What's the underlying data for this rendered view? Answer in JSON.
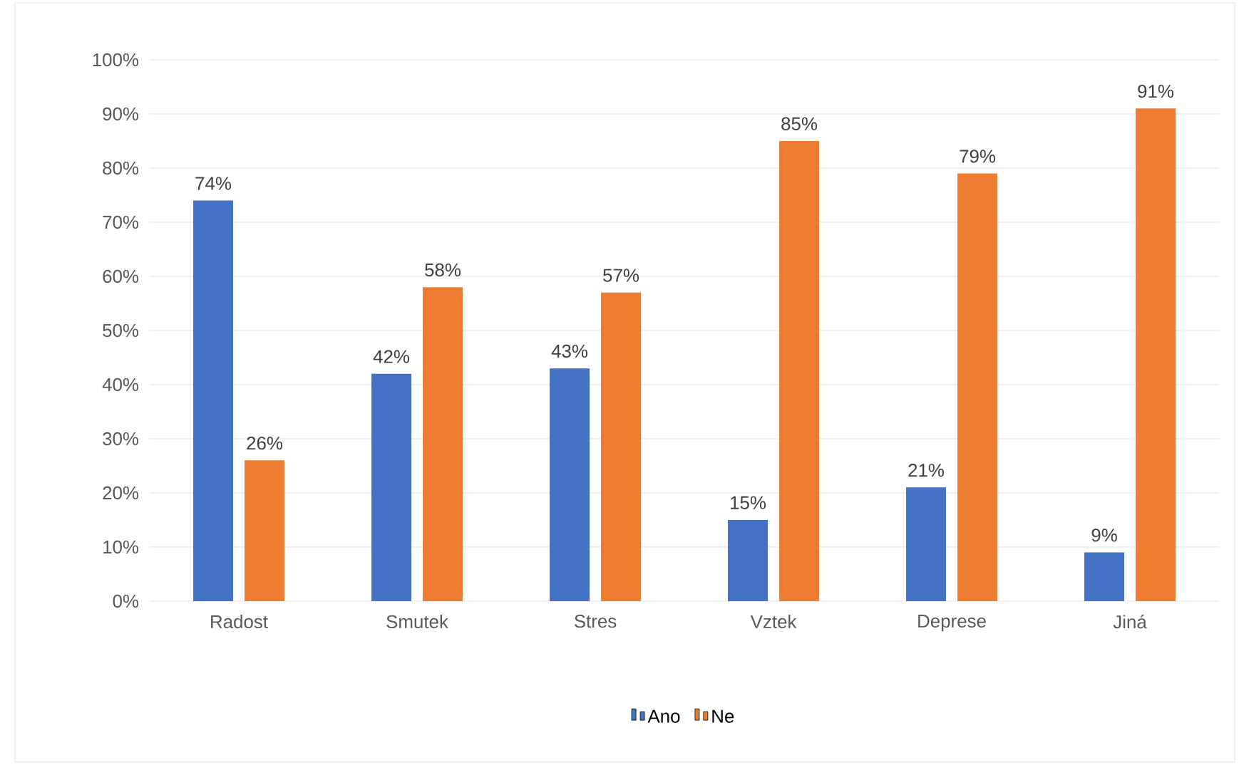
{
  "chart_data": {
    "type": "bar",
    "categories": [
      "Radost",
      "Smutek",
      "Stres",
      "Vztek",
      "Deprese",
      "Jiná"
    ],
    "series": [
      {
        "name": "Ano",
        "color": "#4472c4",
        "values": [
          74,
          42,
          43,
          15,
          21,
          9
        ],
        "value_labels": [
          "74%",
          "42%",
          "43%",
          "15%",
          "21%",
          "9%"
        ]
      },
      {
        "name": "Ne",
        "color": "#ed7d31",
        "values": [
          26,
          58,
          57,
          85,
          79,
          91
        ],
        "value_labels": [
          "26%",
          "58%",
          "57%",
          "85%",
          "79%",
          "91%"
        ]
      }
    ],
    "ylim": [
      0,
      100
    ],
    "yticks": [
      {
        "value": 0,
        "label": "0%"
      },
      {
        "value": 10,
        "label": "10%"
      },
      {
        "value": 20,
        "label": "20%"
      },
      {
        "value": 30,
        "label": "30%"
      },
      {
        "value": 40,
        "label": "40%"
      },
      {
        "value": 50,
        "label": "50%"
      },
      {
        "value": 60,
        "label": "60%"
      },
      {
        "value": 70,
        "label": "70%"
      },
      {
        "value": 80,
        "label": "80%"
      },
      {
        "value": 90,
        "label": "90%"
      },
      {
        "value": 100,
        "label": "100%"
      }
    ],
    "grid": "y",
    "legend": "bottom"
  }
}
